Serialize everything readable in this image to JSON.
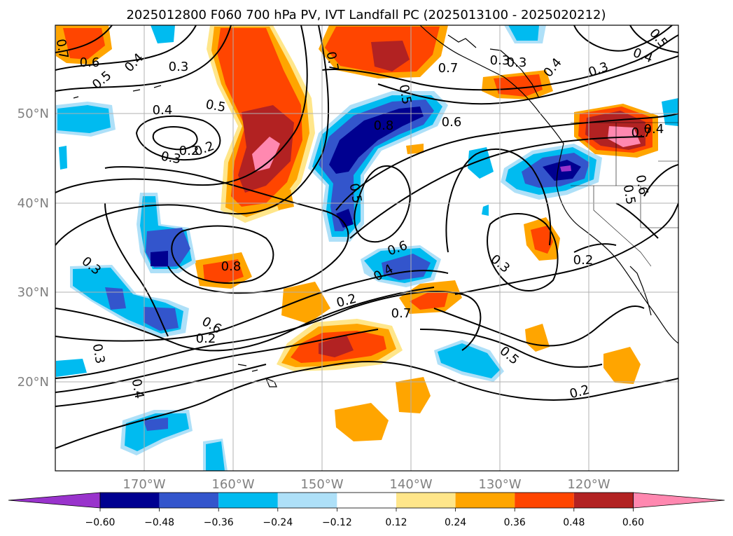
{
  "title": "2025012800 F060 700 hPa PV, IVT Landfall PC (2025013100 - 2025020212)",
  "lon_labels": [
    "170°W",
    "160°W",
    "150°W",
    "140°W",
    "130°W",
    "120°W"
  ],
  "lat_labels": [
    "50°N",
    "40°N",
    "30°N",
    "20°N"
  ],
  "colorbar": {
    "tick_labels": [
      "−0.60",
      "−0.48",
      "−0.36",
      "−0.24",
      "−0.12",
      "0.12",
      "0.24",
      "0.36",
      "0.48",
      "0.60"
    ],
    "colors": [
      "#9933cc",
      "#000090",
      "#3355cc",
      "#00bbf0",
      "#aee0f8",
      "#ffffff",
      "#ffe68a",
      "#ffa500",
      "#ff4500",
      "#b22222",
      "#ff88b0"
    ]
  },
  "contour_labels": [
    "0.7",
    "0.6",
    "0.5",
    "0.4",
    "0.3",
    "0.4",
    "0.5",
    "0.2",
    "0.3",
    "0.7",
    "0.7",
    "0.3",
    "0.4",
    "0.3",
    "0.4",
    "0.5",
    "0.6",
    "0.8",
    "0.5",
    "0.6",
    "0.5",
    "0.4",
    "0.3",
    "0.2",
    "0.3",
    "0.4",
    "0.2",
    "0.7",
    "0.8",
    "0.6",
    "0.2",
    "0.3",
    "0.4",
    "0.2",
    "0.5",
    "0.6",
    "0.5",
    "0.7",
    "0.3",
    "0.2"
  ],
  "map": {
    "lon_range": [
      -180,
      -110
    ],
    "lat_range": [
      10,
      60
    ],
    "gridlines": true
  }
}
